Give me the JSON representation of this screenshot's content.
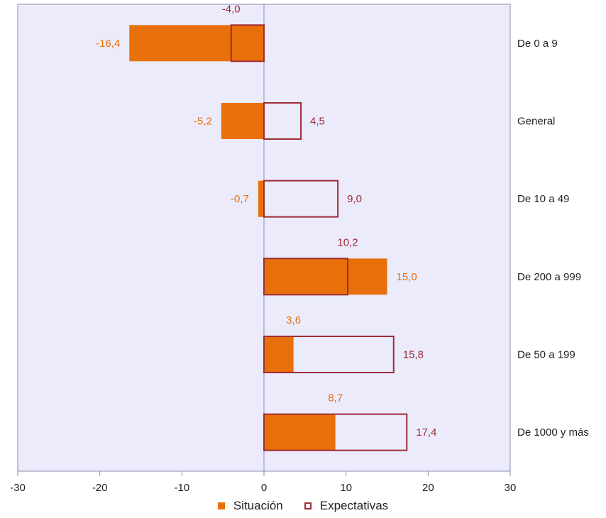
{
  "chart_data": {
    "type": "bar",
    "orientation": "horizontal",
    "categories": [
      "De 0 a 9",
      "General",
      "De 10 a 49",
      "De 200 a 999",
      "De 50 a 199",
      "De 1000 y más"
    ],
    "series": [
      {
        "name": "Situación",
        "values": [
          -16.4,
          -5.2,
          -0.7,
          15.0,
          3.6,
          8.7
        ],
        "labels": [
          "-16,4",
          "-5,2",
          "-0,7",
          "15,0",
          "3,6",
          "8,7"
        ],
        "style": "filled"
      },
      {
        "name": "Expectativas",
        "values": [
          -4.0,
          4.5,
          9.0,
          10.2,
          15.8,
          17.4
        ],
        "labels": [
          "-4,0",
          "4,5",
          "9,0",
          "10,2",
          "15,8",
          "17,4"
        ],
        "style": "outline"
      }
    ],
    "xlim": [
      -30,
      30
    ],
    "xticks": [
      -30,
      -20,
      -10,
      0,
      10,
      20,
      30
    ],
    "xtick_labels": [
      "-30",
      "-20",
      "-10",
      "0",
      "10",
      "20",
      "30"
    ],
    "grid": false,
    "legend_position": "bottom",
    "colors": {
      "situacion": "#e8700a",
      "expectativas": "#9e2b35",
      "plot_background": "#ebebfc",
      "axis": "#8c8cb0"
    }
  }
}
